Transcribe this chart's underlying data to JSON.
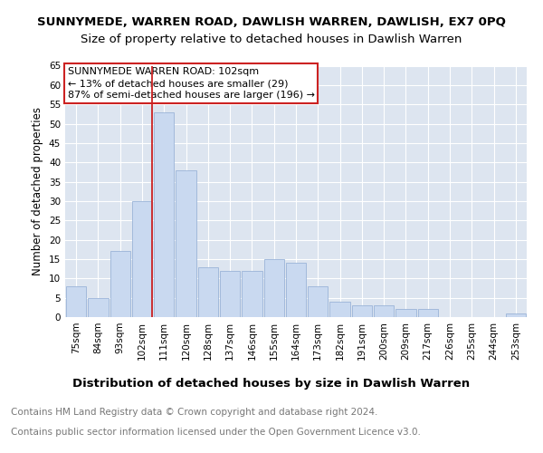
{
  "title": "SUNNYMEDE, WARREN ROAD, DAWLISH WARREN, DAWLISH, EX7 0PQ",
  "subtitle": "Size of property relative to detached houses in Dawlish Warren",
  "xlabel": "Distribution of detached houses by size in Dawlish Warren",
  "ylabel": "Number of detached properties",
  "categories": [
    "75sqm",
    "84sqm",
    "93sqm",
    "102sqm",
    "111sqm",
    "120sqm",
    "128sqm",
    "137sqm",
    "146sqm",
    "155sqm",
    "164sqm",
    "173sqm",
    "182sqm",
    "191sqm",
    "200sqm",
    "209sqm",
    "217sqm",
    "226sqm",
    "235sqm",
    "244sqm",
    "253sqm"
  ],
  "values": [
    8,
    5,
    17,
    30,
    53,
    38,
    13,
    12,
    12,
    15,
    14,
    8,
    4,
    3,
    3,
    2,
    2,
    0,
    0,
    0,
    1
  ],
  "bar_color": "#c9d9f0",
  "bar_edge_color": "#9ab4d8",
  "vline_x_index": 3,
  "vline_color": "#cc2222",
  "annotation_line1": "SUNNYMEDE WARREN ROAD: 102sqm",
  "annotation_line2": "← 13% of detached houses are smaller (29)",
  "annotation_line3": "87% of semi-detached houses are larger (196) →",
  "annotation_box_color": "#ffffff",
  "annotation_box_edge": "#cc2222",
  "ylim": [
    0,
    65
  ],
  "yticks": [
    0,
    5,
    10,
    15,
    20,
    25,
    30,
    35,
    40,
    45,
    50,
    55,
    60,
    65
  ],
  "plot_bg_color": "#dde5f0",
  "grid_color": "#ffffff",
  "footer_line1": "Contains HM Land Registry data © Crown copyright and database right 2024.",
  "footer_line2": "Contains public sector information licensed under the Open Government Licence v3.0.",
  "title_fontsize": 9.5,
  "subtitle_fontsize": 9.5,
  "xlabel_fontsize": 9.5,
  "ylabel_fontsize": 8.5,
  "tick_fontsize": 7.5,
  "annotation_fontsize": 8.0,
  "footer_fontsize": 7.5
}
